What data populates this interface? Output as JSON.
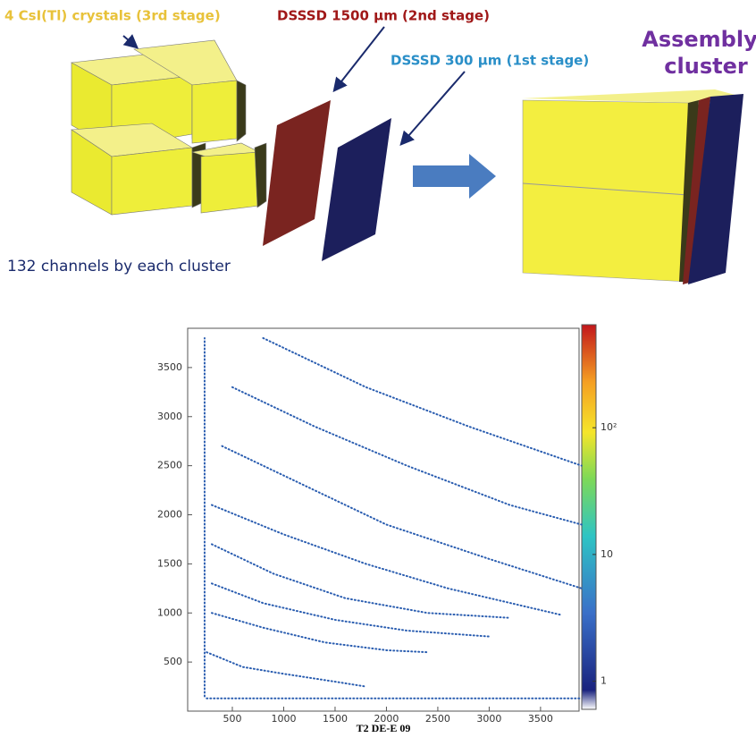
{
  "diagram": {
    "crystals_label": "4 CsI(Tl) crystals (3rd stage)",
    "dsssd2_label": "DSSSD 1500 µm (2nd stage)",
    "dsssd1_label": "DSSSD 300 µm (1st stage)",
    "assembly_label_line1": "Assembly",
    "assembly_label_line2": "cluster",
    "channels_note": "132 channels by each cluster"
  },
  "chart_data": {
    "type": "line",
    "x_label": "T2 DE-E 09",
    "xlim": [
      65,
      3875
    ],
    "ylim": [
      0,
      3900
    ],
    "xticks": [
      500,
      1000,
      1500,
      2000,
      2500,
      3000,
      3500
    ],
    "yticks": [
      500,
      1000,
      1500,
      2000,
      2500,
      3000,
      3500
    ],
    "series": [
      {
        "color": "#2a5db0",
        "x": [
          250,
          3900
        ],
        "values": [
          130,
          130
        ]
      },
      {
        "color": "#2a5db0",
        "x": [
          230,
          230
        ],
        "values": [
          150,
          3800
        ]
      },
      {
        "color": "#2a5db0",
        "x": [
          250,
          600,
          1000,
          1500,
          1800
        ],
        "values": [
          600,
          450,
          380,
          300,
          250
        ]
      },
      {
        "color": "#2a5db0",
        "x": [
          300,
          800,
          1400,
          2000,
          2400
        ],
        "values": [
          1000,
          850,
          700,
          620,
          600
        ]
      },
      {
        "color": "#2a5db0",
        "x": [
          300,
          800,
          1500,
          2200,
          3000
        ],
        "values": [
          1300,
          1100,
          930,
          820,
          760
        ]
      },
      {
        "color": "#2a5db0",
        "x": [
          300,
          900,
          1600,
          2400,
          3200
        ],
        "values": [
          1700,
          1400,
          1150,
          1000,
          950
        ]
      },
      {
        "color": "#2a5db0",
        "x": [
          300,
          1000,
          1800,
          2600,
          3700
        ],
        "values": [
          2100,
          1800,
          1500,
          1250,
          980
        ]
      },
      {
        "color": "#2a5db0",
        "x": [
          400,
          1200,
          2000,
          3000,
          3900
        ],
        "values": [
          2700,
          2300,
          1900,
          1550,
          1250
        ]
      },
      {
        "color": "#2a5db0",
        "x": [
          500,
          1300,
          2200,
          3200,
          3900
        ],
        "values": [
          3300,
          2900,
          2500,
          2100,
          1900
        ]
      },
      {
        "color": "#2a5db0",
        "x": [
          800,
          1800,
          2800,
          3900
        ],
        "values": [
          3800,
          3300,
          2900,
          2500
        ]
      }
    ],
    "colorbar": {
      "log": true,
      "lim": [
        0.6,
        650
      ],
      "ticks": [
        1,
        10,
        {
          "value": 100,
          "label": "10²"
        }
      ]
    }
  }
}
